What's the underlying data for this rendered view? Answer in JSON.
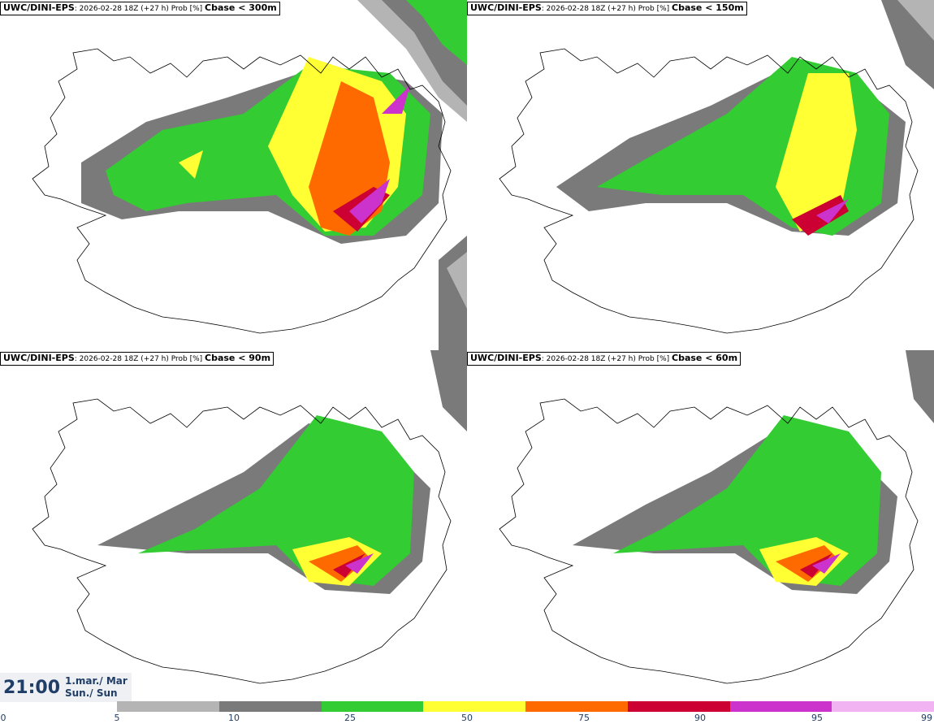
{
  "legend_colors": [
    "#b4b4b4",
    "#7a7a7a",
    "#33cc33",
    "#ffff33",
    "#ff6a00",
    "#cc0033",
    "#cc33cc",
    "#f2b3f2"
  ],
  "panels": [
    {
      "model": "UWC/DINI-EPS",
      "info": ": 2026-02-28 18Z (+27 h) Prob [%] ",
      "param": "Cbase < 300m"
    },
    {
      "model": "UWC/DINI-EPS",
      "info": ": 2026-02-28 18Z (+27 h) Prob [%] ",
      "param": "Cbase < 150m"
    },
    {
      "model": "UWC/DINI-EPS",
      "info": ": 2026-02-28 18Z (+27 h) Prob [%] ",
      "param": "Cbase < 90m"
    },
    {
      "model": "UWC/DINI-EPS",
      "info": ": 2026-02-28 18Z (+27 h) Prob [%] ",
      "param": "Cbase < 60m"
    }
  ],
  "valid_time": {
    "time": "21:00",
    "date": "1.mar./ Mar",
    "day": "Sun./ Sun"
  },
  "legend_ticks": [
    "0",
    "5",
    "10",
    "25",
    "50",
    "75",
    "90",
    "95",
    "99"
  ]
}
